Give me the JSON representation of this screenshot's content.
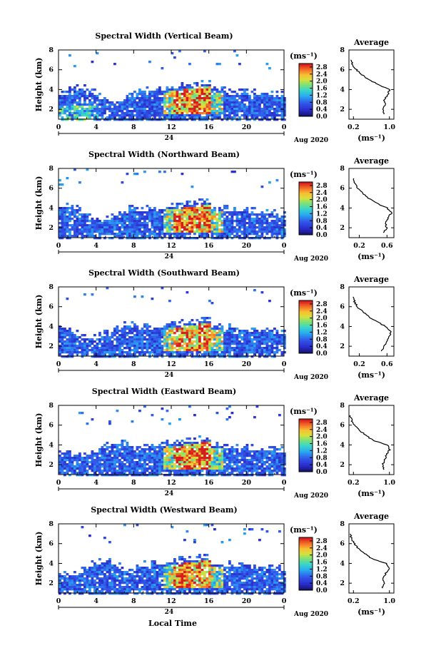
{
  "chart_data": [
    {
      "type": "heatmap",
      "title": "Spectral Width (Vertical Beam)",
      "ylabel": "Height (km)",
      "xticks": [
        "0",
        "4",
        "8",
        "12",
        "16",
        "20",
        "0"
      ],
      "yticks": [
        "2",
        "4",
        "6",
        "8"
      ],
      "ylim": [
        1,
        8
      ],
      "date_label": "24",
      "month_label": "Aug 2020",
      "colorbar": {
        "unit": "(ms⁻¹)",
        "ticks": [
          "0.0",
          "0.4",
          "0.8",
          "1.2",
          "1.6",
          "2.0",
          "2.4",
          "2.8"
        ],
        "range": [
          0,
          3.0
        ]
      },
      "average": {
        "title": "Average",
        "xticks": [
          "0.2",
          "1.0"
        ],
        "yticks": [
          "2",
          "4",
          "6",
          "8"
        ],
        "xlim": [
          0.1,
          1.1
        ],
        "xlabel": "(ms⁻¹)",
        "heights": [
          1.5,
          2.0,
          2.5,
          3.0,
          3.5,
          4.0,
          4.5,
          5.0,
          5.5,
          6.0,
          6.5,
          7.0
        ],
        "values": [
          0.88,
          0.85,
          0.92,
          0.88,
          0.97,
          1.0,
          0.75,
          0.55,
          0.38,
          0.27,
          0.18,
          0.14
        ]
      }
    },
    {
      "type": "heatmap",
      "title": "Spectral Width (Northward Beam)",
      "ylabel": "Height (km)",
      "xticks": [
        "0",
        "4",
        "8",
        "12",
        "16",
        "20",
        "0"
      ],
      "yticks": [
        "2",
        "4",
        "6",
        "8"
      ],
      "ylim": [
        1,
        8
      ],
      "date_label": "24",
      "month_label": "Aug 2020",
      "colorbar": {
        "unit": "(ms⁻¹)",
        "ticks": [
          "0.0",
          "0.4",
          "0.8",
          "1.2",
          "1.6",
          "2.0",
          "2.4",
          "2.8"
        ],
        "range": [
          0,
          3.0
        ]
      },
      "average": {
        "title": "Average",
        "xticks": [
          "0.2",
          "0.6"
        ],
        "yticks": [
          "2",
          "4",
          "6",
          "8"
        ],
        "xlim": [
          0.05,
          0.7
        ],
        "xlabel": "(ms⁻¹)",
        "heights": [
          1.5,
          2.0,
          2.5,
          3.0,
          3.5,
          4.0,
          4.5,
          5.0,
          5.5,
          6.0,
          6.5,
          7.0
        ],
        "values": [
          0.55,
          0.6,
          0.57,
          0.62,
          0.66,
          0.6,
          0.45,
          0.33,
          0.25,
          0.18,
          0.14,
          0.12
        ]
      }
    },
    {
      "type": "heatmap",
      "title": "Spectral Width (Southward Beam)",
      "ylabel": "Height (km)",
      "xticks": [
        "0",
        "4",
        "8",
        "12",
        "16",
        "20",
        "0"
      ],
      "yticks": [
        "2",
        "4",
        "6",
        "8"
      ],
      "ylim": [
        1,
        8
      ],
      "date_label": "24",
      "month_label": "Aug 2020",
      "colorbar": {
        "unit": "(ms⁻¹)",
        "ticks": [
          "0.0",
          "0.4",
          "0.8",
          "1.2",
          "1.6",
          "2.0",
          "2.4",
          "2.8"
        ],
        "range": [
          0,
          3.0
        ]
      },
      "average": {
        "title": "Average",
        "xticks": [
          "0.2",
          "0.6"
        ],
        "yticks": [
          "2",
          "4",
          "6",
          "8"
        ],
        "xlim": [
          0.05,
          0.7
        ],
        "xlabel": "(ms⁻¹)",
        "heights": [
          1.5,
          2.0,
          2.5,
          3.0,
          3.5,
          4.0,
          4.5,
          5.0,
          5.5,
          6.0,
          6.5,
          7.0
        ],
        "values": [
          0.52,
          0.55,
          0.6,
          0.63,
          0.66,
          0.58,
          0.45,
          0.33,
          0.25,
          0.17,
          0.13,
          0.11
        ]
      }
    },
    {
      "type": "heatmap",
      "title": "Spectral Width (Eastward Beam)",
      "ylabel": "Height (km)",
      "xticks": [
        "0",
        "4",
        "8",
        "12",
        "16",
        "20",
        "0"
      ],
      "yticks": [
        "2",
        "4",
        "6",
        "8"
      ],
      "ylim": [
        1,
        8
      ],
      "date_label": "24",
      "month_label": "Aug 2020",
      "colorbar": {
        "unit": "(ms⁻¹)",
        "ticks": [
          "0.0",
          "0.4",
          "0.8",
          "1.2",
          "1.6",
          "2.0",
          "2.4",
          "2.8"
        ],
        "range": [
          0,
          3.0
        ]
      },
      "average": {
        "title": "Average",
        "xticks": [
          "0.2",
          "1.0"
        ],
        "yticks": [
          "2",
          "4",
          "6",
          "8"
        ],
        "xlim": [
          0.1,
          1.1
        ],
        "xlabel": "(ms⁻¹)",
        "heights": [
          1.5,
          2.0,
          2.5,
          3.0,
          3.5,
          4.0,
          4.5,
          5.0,
          5.5,
          6.0,
          6.5,
          7.0
        ],
        "values": [
          0.88,
          0.85,
          0.9,
          0.93,
          1.0,
          0.95,
          0.62,
          0.47,
          0.32,
          0.22,
          0.16,
          0.13
        ]
      }
    },
    {
      "type": "heatmap",
      "title": "Spectral Width (Westward Beam)",
      "ylabel": "Height (km)",
      "xticks": [
        "0",
        "4",
        "8",
        "12",
        "16",
        "20",
        "0"
      ],
      "yticks": [
        "2",
        "4",
        "6",
        "8"
      ],
      "ylim": [
        1,
        8
      ],
      "date_label": "24",
      "month_label": "Aug 2020",
      "xlabel": "Local Time",
      "colorbar": {
        "unit": "(ms⁻¹)",
        "ticks": [
          "0.0",
          "0.4",
          "0.8",
          "1.2",
          "1.6",
          "2.0",
          "2.4",
          "2.8"
        ],
        "range": [
          0,
          3.0
        ]
      },
      "average": {
        "title": "Average",
        "xticks": [
          "0.2",
          "1.0"
        ],
        "yticks": [
          "2",
          "4",
          "6",
          "8"
        ],
        "xlim": [
          0.1,
          1.1
        ],
        "xlabel": "(ms⁻¹)",
        "heights": [
          1.5,
          2.0,
          2.5,
          3.0,
          3.5,
          4.0,
          4.5,
          5.0,
          5.5,
          6.0,
          6.5,
          7.0
        ],
        "values": [
          0.85,
          0.88,
          0.85,
          0.92,
          1.0,
          0.93,
          0.6,
          0.45,
          0.31,
          0.22,
          0.16,
          0.13
        ]
      }
    }
  ]
}
